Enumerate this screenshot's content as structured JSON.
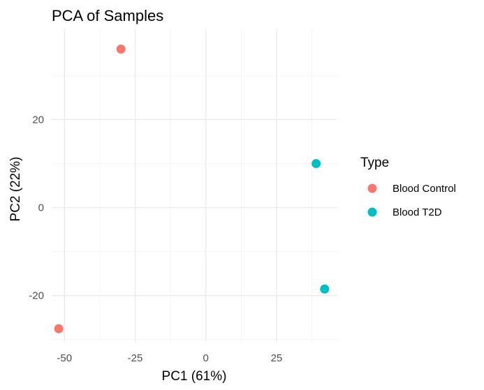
{
  "chart_data": {
    "type": "scatter",
    "title": "PCA of Samples",
    "xlabel": "PC1 (61%)",
    "ylabel": "PC2 (22%)",
    "xlim": [
      -54.5,
      46.5
    ],
    "ylim": [
      -30.5,
      40.5
    ],
    "x_ticks": [
      -50,
      -25,
      0,
      25
    ],
    "x_tick_labels": [
      "-50",
      "-25",
      "0",
      "25"
    ],
    "x_minor": [
      -37.5,
      -12.5,
      12.5,
      37.5
    ],
    "y_ticks": [
      -20,
      0,
      20
    ],
    "y_tick_labels": [
      "-20",
      "0",
      "20"
    ],
    "y_minor": [
      -30,
      -10,
      10,
      30
    ],
    "grid": true,
    "legend": {
      "title": "Type",
      "placement": "right"
    },
    "series": [
      {
        "name": "Blood Control",
        "color": "#F8766D",
        "points": [
          {
            "x": -30,
            "y": 36
          },
          {
            "x": -52,
            "y": -27.5
          }
        ]
      },
      {
        "name": "Blood T2D",
        "color": "#00BFC4",
        "points": [
          {
            "x": 39,
            "y": 10
          },
          {
            "x": 42,
            "y": -18.5
          }
        ]
      }
    ]
  }
}
